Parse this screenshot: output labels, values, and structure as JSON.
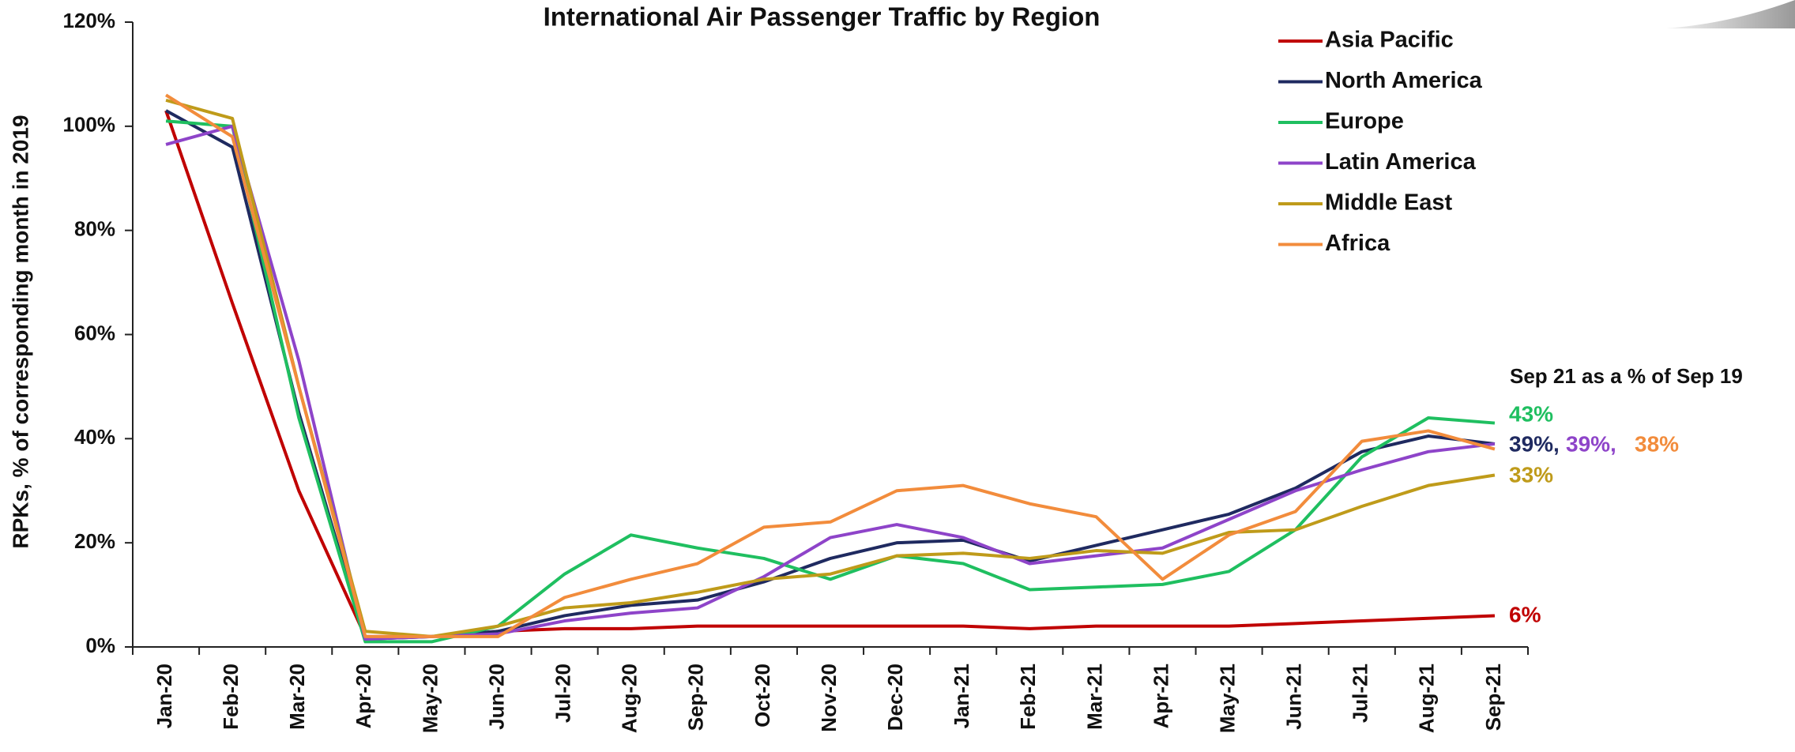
{
  "chart_data": {
    "type": "line",
    "title": "International Air Passenger Traffic by Region",
    "y_label": "RPKs, % of corresponding month in 2019",
    "annotation": "Sep 21 as a % of Sep 19",
    "categories": [
      "Jan-20",
      "Feb-20",
      "Mar-20",
      "Apr-20",
      "May-20",
      "Jun-20",
      "Jul-20",
      "Aug-20",
      "Sep-20",
      "Oct-20",
      "Nov-20",
      "Dec-20",
      "Jan-21",
      "Feb-21",
      "Mar-21",
      "Apr-21",
      "May-21",
      "Jun-21",
      "Jul-21",
      "Aug-21",
      "Sep-21"
    ],
    "ylim": [
      0,
      120
    ],
    "yticks": [
      {
        "value": 0,
        "label": "0%"
      },
      {
        "value": 20,
        "label": "20%"
      },
      {
        "value": 40,
        "label": "40%"
      },
      {
        "value": 60,
        "label": "60%"
      },
      {
        "value": 80,
        "label": "80%"
      },
      {
        "value": 100,
        "label": "100%"
      },
      {
        "value": 120,
        "label": "120%"
      }
    ],
    "legend": "top-right",
    "series": [
      {
        "name": "Asia Pacific",
        "color": "#c00000",
        "values": [
          103,
          66,
          30,
          2,
          2,
          3,
          3.5,
          3.5,
          4,
          4,
          4,
          4,
          4,
          3.5,
          4,
          4,
          4,
          4.5,
          5,
          5.5,
          6
        ],
        "value_labels": [
          null,
          null,
          null,
          null,
          null,
          null,
          null,
          null,
          null,
          null,
          null,
          null,
          null,
          null,
          null,
          null,
          null,
          null,
          null,
          null,
          "6%"
        ]
      },
      {
        "name": "North America",
        "color": "#1f2a60",
        "values": [
          103,
          96,
          45,
          1.5,
          2,
          3,
          6,
          8,
          9,
          12.5,
          17,
          20,
          20.5,
          16.5,
          19.5,
          22.5,
          25.5,
          30.5,
          37.5,
          40.5,
          39
        ],
        "value_labels": [
          null,
          null,
          null,
          null,
          null,
          null,
          null,
          null,
          null,
          null,
          null,
          null,
          null,
          null,
          null,
          null,
          null,
          null,
          null,
          null,
          "39%,"
        ]
      },
      {
        "name": "Europe",
        "color": "#1fbf60",
        "values": [
          101,
          100,
          44,
          1,
          1,
          4,
          14,
          21.5,
          19,
          17,
          13,
          17.5,
          16,
          11,
          11.5,
          12,
          14.5,
          22.5,
          36.5,
          44,
          43
        ],
        "value_labels": [
          null,
          null,
          null,
          null,
          null,
          null,
          null,
          null,
          null,
          null,
          null,
          null,
          null,
          null,
          null,
          null,
          null,
          null,
          null,
          null,
          "43%"
        ]
      },
      {
        "name": "Latin America",
        "color": "#8e44c9",
        "values": [
          96.5,
          100,
          55,
          1.5,
          2,
          2.5,
          5,
          6.5,
          7.5,
          13.5,
          21,
          23.5,
          21,
          16,
          17.5,
          19,
          24.5,
          30,
          34,
          37.5,
          39
        ],
        "value_labels": [
          null,
          null,
          null,
          null,
          null,
          null,
          null,
          null,
          null,
          null,
          null,
          null,
          null,
          null,
          null,
          null,
          null,
          null,
          null,
          null,
          "39%,"
        ]
      },
      {
        "name": "Middle East",
        "color": "#bf9b1a",
        "values": [
          105,
          101.5,
          50,
          3,
          2,
          4,
          7.5,
          8.5,
          10.5,
          13,
          14,
          17.5,
          18,
          17,
          18.5,
          18,
          22,
          22.5,
          27,
          31,
          33
        ],
        "value_labels": [
          null,
          null,
          null,
          null,
          null,
          null,
          null,
          null,
          null,
          null,
          null,
          null,
          null,
          null,
          null,
          null,
          null,
          null,
          null,
          null,
          "33%"
        ]
      },
      {
        "name": "Africa",
        "color": "#f28c3c",
        "values": [
          106,
          98,
          50,
          2,
          2,
          2,
          9.5,
          13,
          16,
          23,
          24,
          30,
          31,
          27.5,
          25,
          13,
          21.5,
          26,
          39.5,
          41.5,
          38
        ],
        "value_labels": [
          null,
          null,
          null,
          null,
          null,
          null,
          null,
          null,
          null,
          null,
          null,
          null,
          null,
          null,
          null,
          null,
          null,
          null,
          null,
          null,
          "38%"
        ]
      }
    ]
  }
}
